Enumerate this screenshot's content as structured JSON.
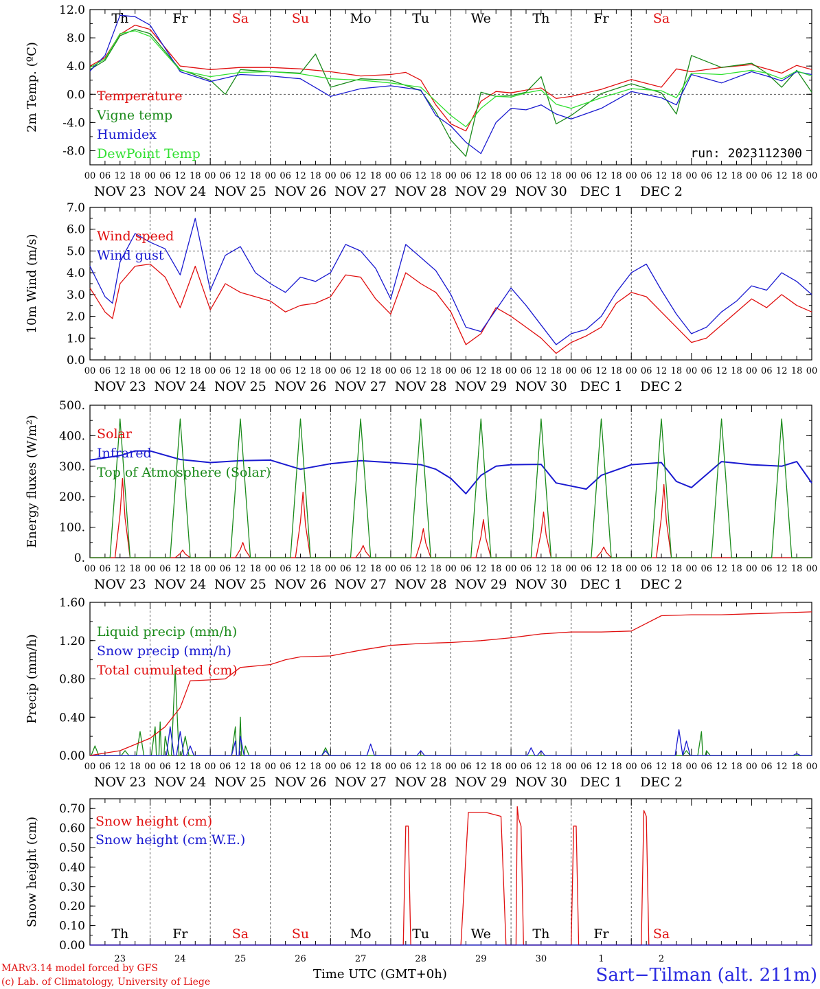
{
  "days": {
    "names": [
      "Th",
      "Fr",
      "Sa",
      "Su",
      "Mo",
      "Tu",
      "We",
      "Th",
      "Fr",
      "Sa"
    ],
    "dates": [
      "NOV 23",
      "NOV 24",
      "NOV 25",
      "NOV 26",
      "NOV 27",
      "NOV 28",
      "NOV 29",
      "NOV 30",
      "DEC  1",
      "DEC  2"
    ],
    "day_numbers": [
      "23",
      "24",
      "25",
      "26",
      "27",
      "28",
      "29",
      "30",
      "1",
      "2"
    ],
    "weekend_color": "#e01010",
    "weekday_color": "#000000"
  },
  "hour_tick_labels": [
    "00",
    "06",
    "12",
    "18"
  ],
  "final_tick_label": "00",
  "run_label": "run: 2023112300",
  "footer": {
    "model": "MARv3.14 model forced by GFS",
    "credit": "(c) Lab. of Climatology, University of Liege",
    "xlabel": "Time UTC (GMT+0h)",
    "station": "Sart−Tilman (alt. 211m)"
  },
  "colors": {
    "red": "#e01010",
    "green": "#1a8a1a",
    "blue": "#1a1ad0",
    "lightgreen": "#30e030"
  },
  "chart_data": [
    {
      "type": "line",
      "ylabel": "2m Temp. (ºC)",
      "ylim": [
        -10,
        12
      ],
      "yticks": [
        "12.0",
        "8.0",
        "4.0",
        "0.0",
        "-4.0",
        "-8.0"
      ],
      "ytick_values": [
        12,
        8,
        4,
        0,
        -4,
        -8
      ],
      "ref_line": 0,
      "x_unit": "hours since NOV 23 00 UTC",
      "series": [
        {
          "name": "Temperature",
          "color": "red",
          "x": [
            0,
            6,
            12,
            18,
            24,
            36,
            48,
            60,
            72,
            84,
            96,
            108,
            120,
            126,
            132,
            138,
            144,
            150,
            156,
            162,
            168,
            174,
            180,
            186,
            192,
            204,
            216,
            228,
            234,
            240,
            252,
            264,
            270,
            276,
            282,
            288
          ],
          "y": [
            4,
            5.2,
            8.5,
            9.8,
            9.2,
            4,
            3.5,
            3.8,
            3.8,
            3.6,
            3.2,
            2.6,
            2.8,
            3.1,
            2.0,
            -1.5,
            -4.2,
            -5.2,
            -1,
            0.4,
            0.2,
            0.6,
            0.9,
            -0.6,
            -0.3,
            0.7,
            2.1,
            1.0,
            3.6,
            3.2,
            3.8,
            4.2,
            3.6,
            3.0,
            4.1,
            3.5
          ]
        },
        {
          "name": "Vigne temp",
          "color": "green",
          "x": [
            0,
            6,
            12,
            18,
            24,
            36,
            48,
            54,
            60,
            72,
            84,
            90,
            96,
            108,
            120,
            132,
            138,
            144,
            150,
            156,
            162,
            168,
            174,
            180,
            186,
            192,
            204,
            216,
            228,
            234,
            240,
            252,
            264,
            270,
            276,
            282,
            288
          ],
          "y": [
            3.5,
            4.8,
            8.3,
            9.2,
            8.6,
            3.5,
            2.0,
            0,
            3.5,
            3.2,
            3,
            5.7,
            1,
            2.2,
            2,
            0.5,
            -2.5,
            -6.5,
            -8.8,
            0.3,
            -0.3,
            -0.2,
            0.3,
            2.5,
            -4.2,
            -3,
            0.1,
            1.5,
            0.2,
            -2.8,
            5.5,
            3.8,
            4.4,
            3,
            1,
            3.4,
            0.3
          ]
        },
        {
          "name": "Humidex",
          "color": "blue",
          "x": [
            0,
            6,
            12,
            18,
            24,
            36,
            48,
            60,
            72,
            84,
            96,
            108,
            120,
            132,
            138,
            144,
            150,
            156,
            162,
            168,
            174,
            180,
            186,
            192,
            204,
            216,
            228,
            234,
            240,
            252,
            264,
            270,
            276,
            282,
            288
          ],
          "y": [
            3.3,
            5.5,
            11.2,
            11,
            9.8,
            3.2,
            1.8,
            2.8,
            2.6,
            2.2,
            -0.3,
            0.8,
            1.2,
            0.6,
            -3,
            -4.5,
            -6.8,
            -8.4,
            -4,
            -2,
            -2.2,
            -1.5,
            -2.8,
            -3.5,
            -2,
            0.4,
            -0.5,
            -1.5,
            2.8,
            1.6,
            3.2,
            2.6,
            1.9,
            3.2,
            2.8
          ]
        },
        {
          "name": "DewPoint Temp",
          "color": "lightgreen",
          "x": [
            0,
            6,
            12,
            18,
            24,
            36,
            48,
            60,
            72,
            84,
            96,
            108,
            120,
            132,
            138,
            144,
            150,
            156,
            162,
            168,
            174,
            180,
            186,
            192,
            204,
            216,
            228,
            234,
            240,
            252,
            264,
            270,
            276,
            282,
            288
          ],
          "y": [
            3.8,
            5.0,
            8.6,
            9.0,
            8.2,
            3.4,
            2.5,
            3.1,
            3.2,
            2.9,
            2.2,
            2.0,
            1.6,
            1.0,
            -1.0,
            -3.0,
            -4.6,
            -2.0,
            -0.3,
            -0.4,
            0.2,
            0.6,
            -1.4,
            -2.0,
            -0.5,
            0.8,
            0.5,
            -0.5,
            3.0,
            2.8,
            3.4,
            3.0,
            2.2,
            3.3,
            2.6
          ]
        }
      ]
    },
    {
      "type": "line",
      "ylabel": "10m Wind (m/s)",
      "ylim": [
        0,
        7
      ],
      "yticks": [
        "7.0",
        "6.0",
        "5.0",
        "4.0",
        "3.0",
        "2.0",
        "1.0",
        "0.0"
      ],
      "ytick_values": [
        7,
        6,
        5,
        4,
        3,
        2,
        1,
        0
      ],
      "ref_line": 5,
      "series": [
        {
          "name": "Wind speed",
          "color": "red",
          "x": [
            0,
            6,
            9,
            12,
            18,
            24,
            30,
            36,
            42,
            48,
            54,
            60,
            66,
            72,
            78,
            84,
            90,
            96,
            102,
            108,
            114,
            120,
            126,
            132,
            138,
            144,
            150,
            156,
            162,
            168,
            174,
            180,
            186,
            192,
            198,
            204,
            210,
            216,
            222,
            228,
            234,
            240,
            246,
            252,
            258,
            264,
            270,
            276,
            282,
            288
          ],
          "y": [
            3.3,
            2.2,
            1.9,
            3.5,
            4.3,
            4.4,
            3.8,
            2.4,
            4.3,
            2.3,
            3.5,
            3.1,
            2.9,
            2.7,
            2.2,
            2.5,
            2.6,
            2.9,
            3.9,
            3.8,
            2.8,
            2.1,
            4.0,
            3.5,
            3.1,
            2.2,
            0.7,
            1.2,
            2.4,
            2.0,
            1.5,
            1.0,
            0.3,
            0.8,
            1.1,
            1.5,
            2.6,
            3.1,
            2.9,
            2.2,
            1.5,
            0.8,
            1.0,
            1.6,
            2.2,
            2.8,
            2.4,
            3.0,
            2.5,
            2.2
          ]
        },
        {
          "name": "Wind gust",
          "color": "blue",
          "x": [
            0,
            6,
            9,
            12,
            18,
            24,
            30,
            36,
            42,
            48,
            54,
            60,
            66,
            72,
            78,
            84,
            90,
            96,
            102,
            108,
            114,
            120,
            126,
            132,
            138,
            144,
            150,
            156,
            162,
            168,
            174,
            180,
            186,
            192,
            198,
            204,
            210,
            216,
            222,
            228,
            234,
            240,
            246,
            252,
            258,
            264,
            270,
            276,
            282,
            288
          ],
          "y": [
            4.3,
            2.9,
            2.6,
            4.5,
            5.8,
            5.4,
            5.1,
            3.9,
            6.5,
            3.2,
            4.8,
            5.2,
            4.0,
            3.5,
            3.1,
            3.8,
            3.6,
            4.0,
            5.3,
            5.0,
            4.2,
            2.8,
            5.3,
            4.7,
            4.1,
            3.0,
            1.5,
            1.3,
            2.3,
            3.3,
            2.5,
            1.6,
            0.7,
            1.2,
            1.4,
            2.0,
            3.1,
            4.0,
            4.4,
            3.2,
            2.1,
            1.2,
            1.5,
            2.2,
            2.7,
            3.4,
            3.2,
            4.0,
            3.6,
            3.0
          ]
        }
      ]
    },
    {
      "type": "line",
      "ylabel": "Energy fluxes (W/m²)",
      "ylim": [
        0,
        500
      ],
      "yticks": [
        "500.",
        "400.",
        "300.",
        "200.",
        "100.",
        "0."
      ],
      "ytick_values": [
        500,
        400,
        300,
        200,
        100,
        0
      ],
      "series": [
        {
          "name": "Solar",
          "color": "red",
          "peaks": [
            [
              13,
              260
            ],
            [
              37,
              25
            ],
            [
              61,
              50
            ],
            [
              85,
              215
            ],
            [
              109,
              40
            ],
            [
              133,
              95
            ],
            [
              157,
              125
            ],
            [
              181,
              150
            ],
            [
              205,
              35
            ],
            [
              229,
              240
            ]
          ]
        },
        {
          "name": "Infrared",
          "color": "blue",
          "x": [
            0,
            12,
            18,
            24,
            36,
            48,
            60,
            72,
            84,
            96,
            108,
            120,
            132,
            138,
            144,
            150,
            156,
            162,
            168,
            180,
            186,
            192,
            198,
            204,
            216,
            228,
            234,
            240,
            252,
            264,
            276,
            282,
            288
          ],
          "y": [
            320,
            335,
            350,
            350,
            322,
            312,
            318,
            320,
            290,
            308,
            318,
            312,
            305,
            290,
            260,
            210,
            270,
            300,
            305,
            306,
            245,
            235,
            225,
            270,
            305,
            312,
            250,
            230,
            315,
            305,
            300,
            315,
            245
          ]
        },
        {
          "name": "Top of Atmosphere (Solar)",
          "color": "green",
          "peak": 455,
          "rise": 8,
          "set": 16
        }
      ]
    },
    {
      "type": "line",
      "ylabel": "Precip (mm/h)",
      "ylim": [
        0,
        1.6
      ],
      "yticks": [
        "1.60",
        "1.20",
        "0.80",
        "0.40",
        "0.00"
      ],
      "ytick_values": [
        1.6,
        1.2,
        0.8,
        0.4,
        0
      ],
      "series": [
        {
          "name": "Liquid precip (mm/h)",
          "color": "green",
          "spikes": [
            [
              2,
              0.1
            ],
            [
              14,
              0.05
            ],
            [
              20,
              0.25
            ],
            [
              26,
              0.3
            ],
            [
              28,
              0.35
            ],
            [
              30,
              0.2
            ],
            [
              34,
              0.9
            ],
            [
              38,
              0.2
            ],
            [
              58,
              0.3
            ],
            [
              60,
              0.4
            ],
            [
              62,
              0.1
            ],
            [
              94,
              0.08
            ],
            [
              238,
              0.05
            ],
            [
              244,
              0.25
            ],
            [
              246,
              0.05
            ]
          ]
        },
        {
          "name": "Snow precip (mm/h)",
          "color": "blue",
          "spikes": [
            [
              32,
              0.3
            ],
            [
              36,
              0.25
            ],
            [
              40,
              0.1
            ],
            [
              58,
              0.15
            ],
            [
              60,
              0.2
            ],
            [
              94,
              0.05
            ],
            [
              112,
              0.12
            ],
            [
              132,
              0.05
            ],
            [
              176,
              0.08
            ],
            [
              180,
              0.05
            ],
            [
              235,
              0.27
            ],
            [
              238,
              0.15
            ],
            [
              282,
              0.02
            ]
          ]
        },
        {
          "name": "Total cumulated (cm)",
          "color": "red",
          "x": [
            0,
            12,
            24,
            30,
            36,
            40,
            48,
            54,
            60,
            72,
            78,
            84,
            96,
            108,
            120,
            132,
            144,
            156,
            168,
            180,
            192,
            204,
            216,
            222,
            228,
            240,
            252,
            264,
            276,
            288
          ],
          "y": [
            0,
            0.05,
            0.18,
            0.3,
            0.5,
            0.78,
            0.79,
            0.8,
            0.92,
            0.95,
            1.0,
            1.03,
            1.04,
            1.1,
            1.15,
            1.17,
            1.18,
            1.2,
            1.23,
            1.27,
            1.29,
            1.29,
            1.3,
            1.38,
            1.46,
            1.47,
            1.47,
            1.48,
            1.49,
            1.5
          ]
        }
      ]
    },
    {
      "type": "line",
      "ylabel": "Snow height (cm)",
      "ylim": [
        0,
        0.75
      ],
      "yticks": [
        "0.70",
        "0.60",
        "0.50",
        "0.40",
        "0.30",
        "0.20",
        "0.10",
        "0.00"
      ],
      "ytick_values": [
        0.7,
        0.6,
        0.5,
        0.4,
        0.3,
        0.2,
        0.1,
        0
      ],
      "series": [
        {
          "name": "Snow height (cm)",
          "color": "red",
          "x": [
            0,
            125,
            126,
            127,
            128,
            148,
            151,
            158,
            164,
            166,
            170,
            170.5,
            171,
            172,
            173,
            192,
            193,
            194,
            195,
            220,
            221,
            222,
            223,
            288
          ],
          "y": [
            0,
            0,
            0.61,
            0.61,
            0,
            0,
            0.68,
            0.68,
            0.66,
            0,
            0,
            0.71,
            0.65,
            0.61,
            0,
            0,
            0.61,
            0.61,
            0,
            0,
            0.69,
            0.66,
            0,
            0
          ]
        },
        {
          "name": "Snow height (cm W.E.)",
          "color": "blue",
          "x": [
            0,
            288
          ],
          "y": [
            0,
            0
          ]
        }
      ]
    }
  ]
}
